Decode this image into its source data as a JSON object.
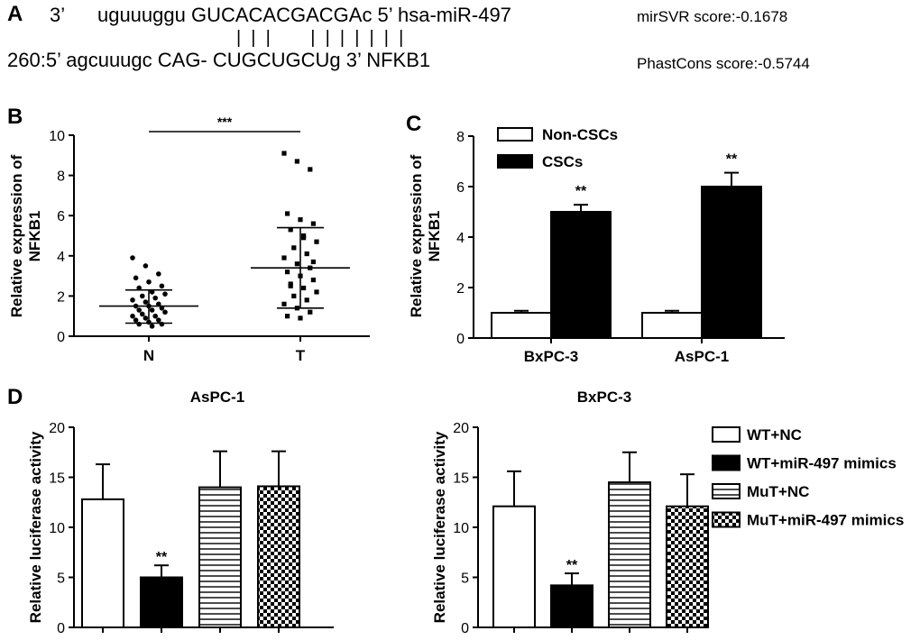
{
  "panel_a": {
    "letter": "A",
    "mirna_seq": "3’      uguuuggu GUCACACGACGAc 5’ hsa-miR-497",
    "target_seq": "260:5’ agcuuugc CAG- CUGCUGCUg 3’ NFKB1",
    "pair_marks": "|  |  |        |  |  |  |  |  |  |",
    "mirsvr_score": "mirSVR score:-0.1678",
    "phastcons_score": "PhastCons score:-0.5744"
  },
  "chart_data": [
    {
      "panel": "B",
      "type": "scatter",
      "ylabel": "Relative expression of NFKB1",
      "ylabel_lines": [
        "Relative expression of",
        "NFKB1"
      ],
      "ylim": [
        0,
        10
      ],
      "yticks": [
        "0",
        "2",
        "4",
        "6",
        "8",
        "10"
      ],
      "categories": [
        "N",
        "T"
      ],
      "groups": [
        {
          "name": "N",
          "mean": 1.5,
          "sd_low": 0.65,
          "sd_high": 2.3,
          "points": [
            3.9,
            3.5,
            3.1,
            2.9,
            2.7,
            2.5,
            2.4,
            2.2,
            2.1,
            2.0,
            1.9,
            1.8,
            1.7,
            1.6,
            1.5,
            1.5,
            1.4,
            1.3,
            1.3,
            1.2,
            1.1,
            1.0,
            1.0,
            0.9,
            0.8,
            0.8,
            0.7,
            0.6,
            0.6,
            0.5
          ]
        },
        {
          "name": "T",
          "mean": 3.4,
          "sd_low": 1.4,
          "sd_high": 5.4,
          "points": [
            9.1,
            8.7,
            8.3,
            6.1,
            5.8,
            5.6,
            5.3,
            5.0,
            4.7,
            4.4,
            4.1,
            3.9,
            3.6,
            3.4,
            3.2,
            3.0,
            2.8,
            2.6,
            2.4,
            2.2,
            2.0,
            1.8,
            1.6,
            1.4,
            1.2,
            1.0,
            0.9,
            3.7,
            2.5,
            4.9
          ]
        }
      ],
      "significance": "***"
    },
    {
      "panel": "C",
      "type": "bar",
      "ylabel": "Relative expression of NFKB1",
      "ylabel_lines": [
        "Relative expression of",
        "NFKB1"
      ],
      "ylim": [
        0,
        8
      ],
      "yticks": [
        "0",
        "2",
        "4",
        "6",
        "8"
      ],
      "categories": [
        "BxPC-3",
        "AsPC-1"
      ],
      "series": [
        {
          "name": "Non-CSCs",
          "fill": "#ffffff",
          "values": [
            1.0,
            1.0
          ],
          "errors": [
            0.08,
            0.08
          ],
          "labels": [
            "",
            ""
          ]
        },
        {
          "name": "CSCs",
          "fill": "#000000",
          "values": [
            5.0,
            6.0
          ],
          "errors": [
            0.28,
            0.55
          ],
          "labels": [
            "**",
            "**"
          ]
        }
      ],
      "legend": [
        "Non-CSCs",
        "CSCs"
      ],
      "legend_position": "top-left"
    },
    {
      "panel": "D",
      "type": "bar",
      "title": "AsPC-1",
      "ylabel": "Relative luciferase activity",
      "ylim": [
        0,
        20
      ],
      "yticks": [
        "0",
        "5",
        "10",
        "15",
        "20"
      ],
      "categories": [
        "WT+NC",
        "WT+miR-497 mimics",
        "MuT+NC",
        "MuT+miR-497 mimics"
      ],
      "values": [
        12.8,
        5.0,
        14.0,
        14.1
      ],
      "errors": [
        3.5,
        1.2,
        3.6,
        3.5
      ],
      "labels": [
        "",
        "**",
        "",
        ""
      ]
    },
    {
      "panel": "D",
      "type": "bar",
      "title": "BxPC-3",
      "ylabel": "Relative luciferase activity",
      "ylim": [
        0,
        20
      ],
      "yticks": [
        "0",
        "5",
        "10",
        "15",
        "20"
      ],
      "categories": [
        "WT+NC",
        "WT+miR-497 mimics",
        "MuT+NC",
        "MuT+miR-497 mimics"
      ],
      "values": [
        12.1,
        4.2,
        14.5,
        12.1
      ],
      "errors": [
        3.5,
        1.2,
        3.0,
        3.2
      ],
      "labels": [
        "",
        "**",
        "",
        ""
      ]
    }
  ],
  "legend_d": {
    "items": [
      {
        "label": "WT+NC",
        "pattern": "white"
      },
      {
        "label": "WT+miR-497 mimics",
        "pattern": "black"
      },
      {
        "label": "MuT+NC",
        "pattern": "hstripes"
      },
      {
        "label": "MuT+miR-497 mimics",
        "pattern": "checker"
      }
    ],
    "position": "right"
  },
  "panel_letters": [
    "B",
    "C",
    "D"
  ]
}
